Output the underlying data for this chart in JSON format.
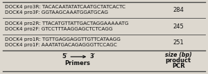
{
  "col1_header_line1": "Primers",
  "col1_header_line2": "5′",
  "col1_header_line2_end": "3′",
  "col2_header_line1": "PCR",
  "col2_header_line2": "product",
  "col2_header_line3": "size (",
  "col2_header_line3_italic": "bp",
  "col2_header_line3_end": ")",
  "rows": [
    {
      "line1": "DOCK4 pro1F: AAATATGACAGAGGGTTCCAGC",
      "line2": "DOCK4 pro1R: TGTTGAGGAGGTTGTTCATAAGG",
      "size": "251"
    },
    {
      "line1": "DOCK4 pro2F: GTCCTTTAAGGAGCTCTCAGG",
      "line2": "DOCK4 pro2R: TTACATGTTATTGACTAGGAAAAATG",
      "size": "245"
    },
    {
      "line1": "DOCK4 pro3F: GGTAAGCAAATGGATGCAG",
      "line2": "DOCK4 pro3R: TACACAATATATCAATGCTATCACTC",
      "size": "284"
    }
  ],
  "bg_color": "#ddd8cf",
  "line_color": "#444444",
  "text_color": "#111111",
  "header_font_size": 6.0,
  "row_font_size": 5.2,
  "size_font_size": 6.0,
  "col_split": 0.735
}
